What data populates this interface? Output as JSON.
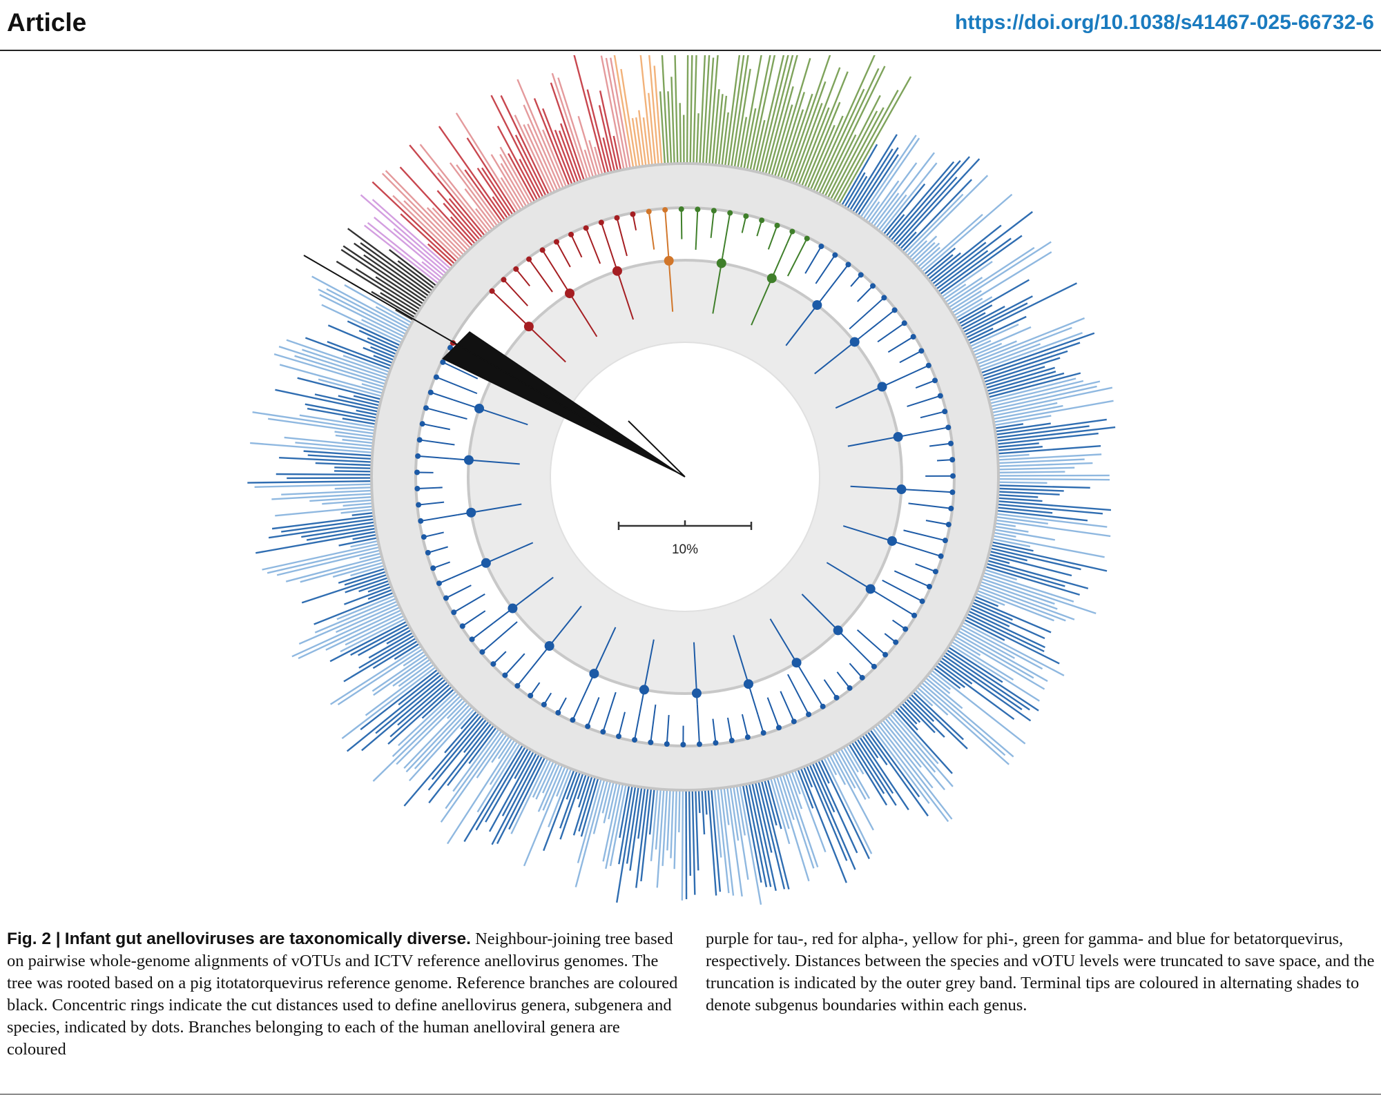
{
  "header": {
    "title": "Article",
    "doi": "https://doi.org/10.1038/s41467-025-66732-6"
  },
  "figure": {
    "scale_label": "10%"
  },
  "caption": {
    "label": "Fig. 2 |",
    "title": "Infant gut anelloviruses are taxonomically diverse.",
    "text": [
      "Neighbour-joining tree based on pairwise whole-genome alignments of vOTUs and ICTV reference anellovirus genomes. The tree was rooted based on a pig itotatorquevirus reference genome. Reference branches are coloured black. Concentric rings indicate the cut distances used to define anellovirus genera, subgenera and species, indicated by dots. Branches belonging to each of the human anelloviral genera are coloured",
      "purple for tau-, red for alpha-, yellow for phi-, green for gamma- and blue for betatorquevirus, respectively. Distances between the species and vOTU levels were truncated to save space, and the truncation is indicated by the outer grey band. Terminal tips are coloured in alternating shades to denote subgenus boundaries within each genus."
    ]
  }
}
